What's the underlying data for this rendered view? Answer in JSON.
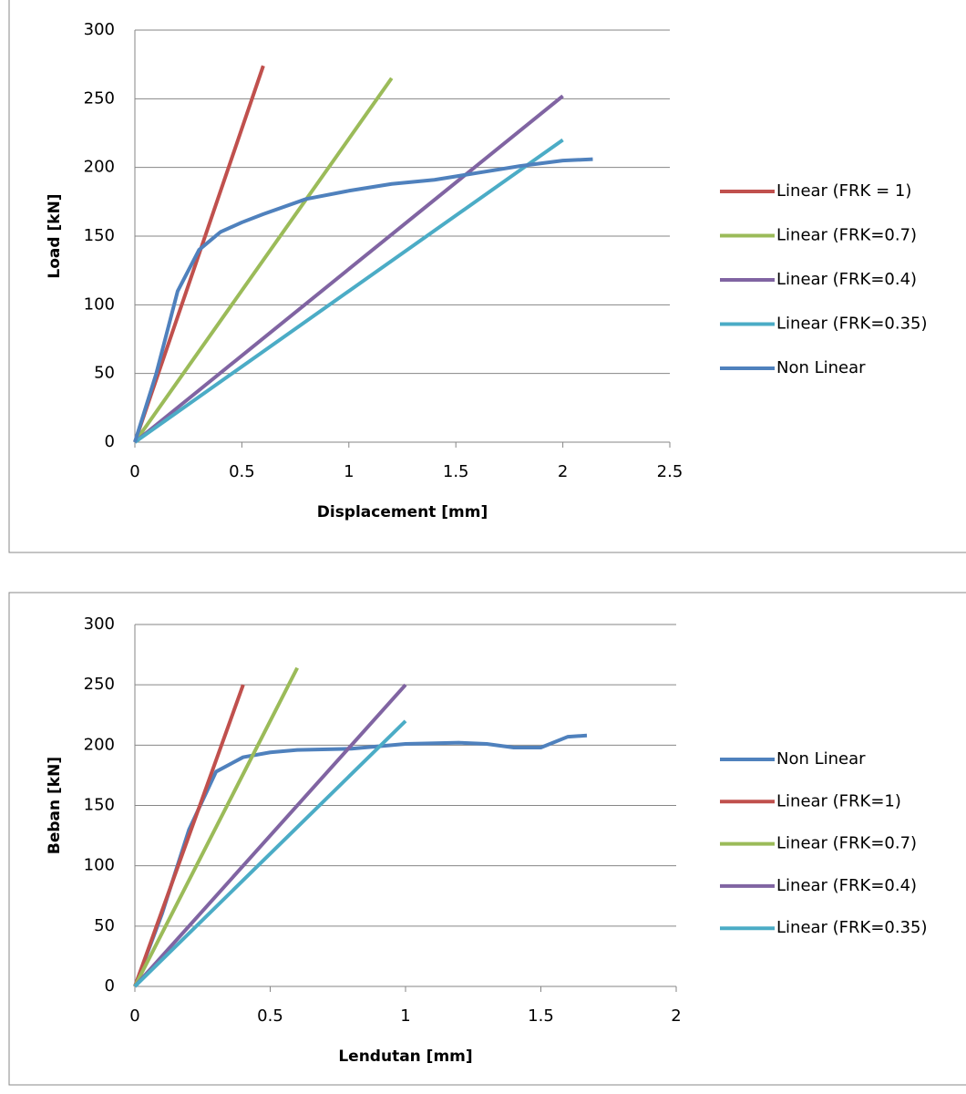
{
  "chart_data": [
    {
      "type": "line",
      "xlabel": "Displacement [mm]",
      "ylabel": "Load [kN]",
      "xlim": [
        0,
        2.5
      ],
      "ylim": [
        0,
        300
      ],
      "xticks": [
        0,
        0.5,
        1,
        1.5,
        2,
        2.5
      ],
      "yticks": [
        0,
        50,
        100,
        150,
        200,
        250,
        300
      ],
      "grid": true,
      "legend": "right",
      "series": [
        {
          "name": "Linear (FRK = 1)",
          "color": "#c0504d",
          "x": [
            0,
            0.6
          ],
          "values": [
            0,
            274
          ]
        },
        {
          "name": "Linear (FRK=0.7)",
          "color": "#9bbb59",
          "x": [
            0,
            1.2
          ],
          "values": [
            0,
            265
          ]
        },
        {
          "name": "Linear (FRK=0.4)",
          "color": "#8064a2",
          "x": [
            0,
            2
          ],
          "values": [
            0,
            252
          ]
        },
        {
          "name": "Linear (FRK=0.35)",
          "color": "#4bacc6",
          "x": [
            0,
            2
          ],
          "values": [
            0,
            220
          ]
        },
        {
          "name": "Non Linear",
          "color": "#4f81bd",
          "x": [
            0,
            0.1,
            0.2,
            0.3,
            0.4,
            0.5,
            0.6,
            0.8,
            1.0,
            1.2,
            1.4,
            1.6,
            1.8,
            2.0,
            2.14
          ],
          "values": [
            0,
            50,
            110,
            140,
            153,
            160,
            166,
            177,
            183,
            188,
            191,
            196,
            201,
            205,
            206
          ]
        }
      ]
    },
    {
      "type": "line",
      "xlabel": "Lendutan [mm]",
      "ylabel": "Beban [kN]",
      "xlim": [
        0,
        2
      ],
      "ylim": [
        0,
        300
      ],
      "xticks": [
        0,
        0.5,
        1,
        1.5,
        2
      ],
      "yticks": [
        0,
        50,
        100,
        150,
        200,
        250,
        300
      ],
      "grid": true,
      "legend": "right",
      "series": [
        {
          "name": "Non Linear",
          "color": "#4f81bd",
          "x": [
            0,
            0.1,
            0.2,
            0.3,
            0.4,
            0.5,
            0.6,
            0.8,
            1.0,
            1.2,
            1.3,
            1.4,
            1.5,
            1.6,
            1.67
          ],
          "values": [
            0,
            60,
            130,
            178,
            190,
            194,
            196,
            197,
            201,
            202,
            201,
            198,
            198,
            207,
            208
          ]
        },
        {
          "name": "Linear (FRK=1)",
          "color": "#c0504d",
          "x": [
            0,
            0.4
          ],
          "values": [
            0,
            250
          ]
        },
        {
          "name": "Linear (FRK=0.7)",
          "color": "#9bbb59",
          "x": [
            0,
            0.6
          ],
          "values": [
            0,
            264
          ]
        },
        {
          "name": "Linear (FRK=0.4)",
          "color": "#8064a2",
          "x": [
            0,
            1
          ],
          "values": [
            0,
            250
          ]
        },
        {
          "name": "Linear (FRK=0.35)",
          "color": "#4bacc6",
          "x": [
            0,
            1
          ],
          "values": [
            0,
            220
          ]
        }
      ]
    }
  ]
}
